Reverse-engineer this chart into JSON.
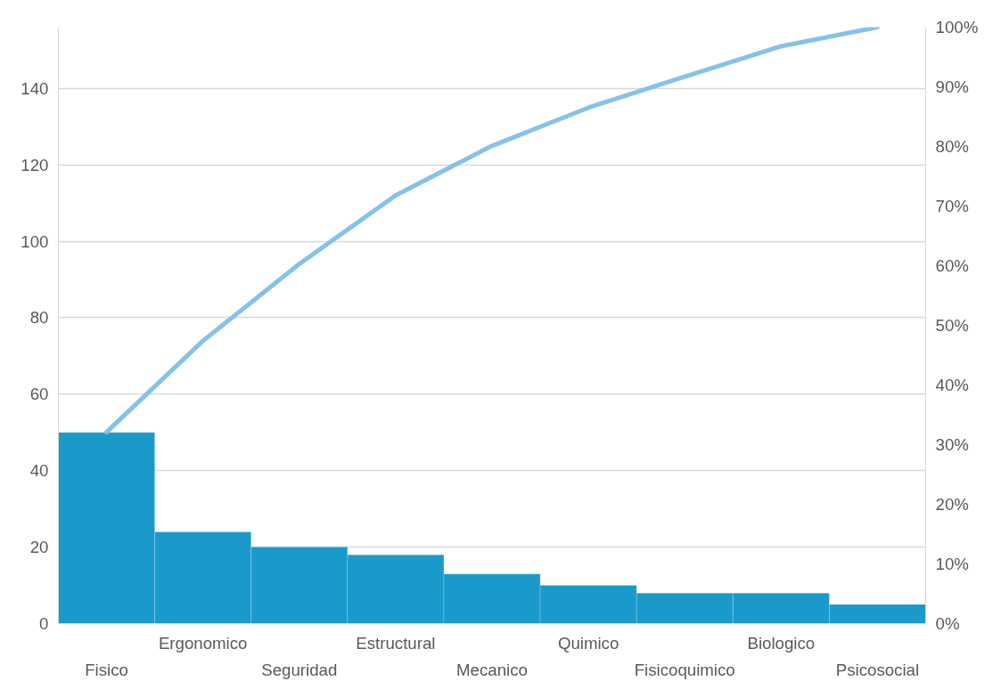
{
  "chart_data": {
    "type": "bar",
    "categories": [
      "Fisico",
      "Ergonomico",
      "Seguridad",
      "Estructural",
      "Mecanico",
      "Quimico",
      "Fisicoquimico",
      "Biologico",
      "Psicosocial"
    ],
    "series": [
      {
        "color": "#1a9acb",
        "values": [
          50,
          24,
          20,
          18,
          13,
          10,
          8,
          8,
          5
        ]
      },
      {
        "type": "line",
        "axis": "y2",
        "color": "#85c2ea",
        "values": [
          32.1,
          47.4,
          60.3,
          71.8,
          80.1,
          86.5,
          91.7,
          96.8,
          100
        ]
      }
    ],
    "ylim": [
      0,
      156
    ],
    "yticks": [
      0,
      20,
      40,
      60,
      80,
      100,
      120,
      140
    ],
    "y2lim": [
      0,
      100
    ],
    "y2ticks": [
      {
        "value": 0,
        "label": "0%"
      },
      {
        "value": 10,
        "label": "10%"
      },
      {
        "value": 20,
        "label": "20%"
      },
      {
        "value": 30,
        "label": "30%"
      },
      {
        "value": 40,
        "label": "40%"
      },
      {
        "value": 50,
        "label": "50%"
      },
      {
        "value": 60,
        "label": "60%"
      },
      {
        "value": 70,
        "label": "70%"
      },
      {
        "value": 80,
        "label": "80%"
      },
      {
        "value": 90,
        "label": "90%"
      },
      {
        "value": 100,
        "label": "100%"
      }
    ],
    "grid": "y"
  }
}
